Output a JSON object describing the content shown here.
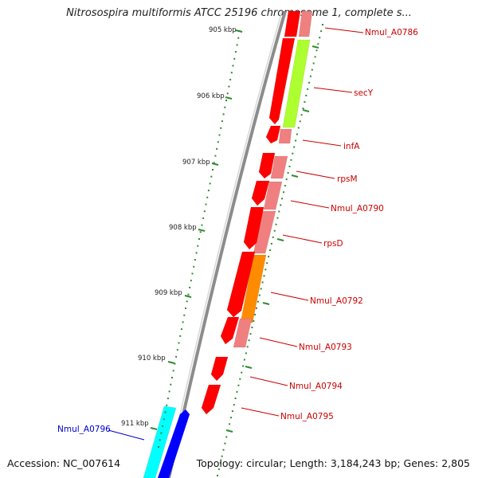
{
  "title": "Nitrosospira multiformis ATCC 25196 chromosome 1, complete s...",
  "footer": {
    "accession": "Accession: NC_007614",
    "topology": "Topology: circular; Length: 3,184,243 bp; Genes: 2,805"
  },
  "colors": {
    "backbone": "#8c8c8c",
    "ticks": "#2e8b2e",
    "gene_red": "#ff0000",
    "gene_pink": "#f08080",
    "gene_green": "#adff2f",
    "gene_orange": "#ff8c00",
    "gene_cyan": "#00ffff",
    "gene_blue": "#0000ff",
    "label_red": "#cc0000",
    "label_blue": "#0000cc"
  },
  "kbp_ticks": [
    "905 kbp",
    "906 kbp",
    "907 kbp",
    "908 kbp",
    "909 kbp",
    "910 kbp",
    "911 kbp"
  ],
  "gene_labels": [
    {
      "text": "Nmul_A0786",
      "color": "red"
    },
    {
      "text": "secY",
      "color": "red"
    },
    {
      "text": "infA",
      "color": "red"
    },
    {
      "text": "rpsM",
      "color": "red"
    },
    {
      "text": "Nmul_A0790",
      "color": "red"
    },
    {
      "text": "rpsD",
      "color": "red"
    },
    {
      "text": "Nmul_A0792",
      "color": "red"
    },
    {
      "text": "Nmul_A0793",
      "color": "red"
    },
    {
      "text": "Nmul_A0794",
      "color": "red"
    },
    {
      "text": "Nmul_A0795",
      "color": "red"
    },
    {
      "text": "Nmul_A0796",
      "color": "blue"
    }
  ]
}
